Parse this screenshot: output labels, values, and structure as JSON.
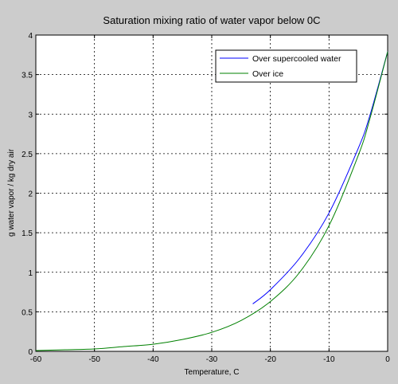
{
  "chart_data": {
    "type": "line",
    "title": "Saturation mixing ratio of water vapor below 0C",
    "xlabel": "Temperature, C",
    "ylabel": "g water vapor / kg dry air",
    "xlim": [
      -60,
      0
    ],
    "ylim": [
      0,
      4
    ],
    "xticks": [
      -60,
      -50,
      -40,
      -30,
      -20,
      -10,
      0
    ],
    "yticks": [
      0,
      0.5,
      1,
      1.5,
      2,
      2.5,
      3,
      3.5,
      4
    ],
    "grid": true,
    "legend_position": "top-right",
    "series": [
      {
        "name": "Over supercooled water",
        "color": "#0000ff",
        "x": [
          -23,
          -20,
          -15,
          -10,
          -5,
          -3,
          0
        ],
        "y": [
          0.6,
          0.78,
          1.18,
          1.75,
          2.57,
          2.99,
          3.79
        ]
      },
      {
        "name": "Over ice",
        "color": "#008000",
        "x": [
          -60,
          -55,
          -50,
          -45,
          -40,
          -35,
          -30,
          -25,
          -20,
          -15,
          -10,
          -5,
          -3,
          0
        ],
        "y": [
          0.01,
          0.02,
          0.03,
          0.06,
          0.09,
          0.15,
          0.24,
          0.39,
          0.63,
          1.0,
          1.59,
          2.48,
          2.95,
          3.79
        ]
      }
    ]
  }
}
